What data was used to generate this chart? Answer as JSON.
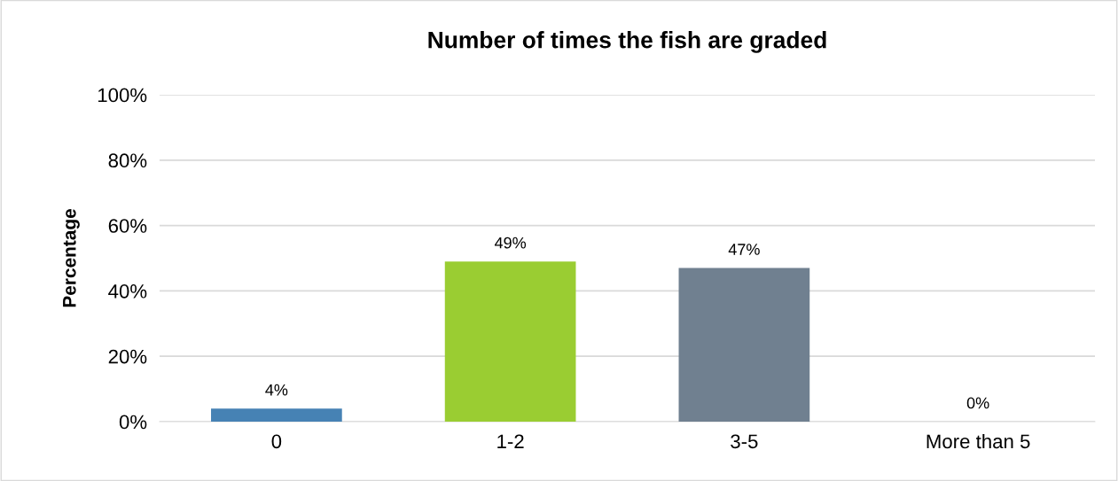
{
  "chart_data": {
    "type": "bar",
    "title": "Number of times the fish are graded",
    "ylabel": "Percentage",
    "categories": [
      "0",
      "1-2",
      "3-5",
      "More than 5"
    ],
    "values": [
      4,
      49,
      47,
      0
    ],
    "colors": [
      "#4682b4",
      "#9acd32",
      "#708090",
      "#708090"
    ],
    "value_labels": [
      "4%",
      "49%",
      "47%",
      "0%"
    ],
    "ylim": [
      0,
      100
    ],
    "yticks": [
      {
        "value": 0,
        "label": "0%"
      },
      {
        "value": 20,
        "label": "20%"
      },
      {
        "value": 40,
        "label": "40%"
      },
      {
        "value": 60,
        "label": "60%"
      },
      {
        "value": 80,
        "label": "80%"
      },
      {
        "value": 100,
        "label": "100%"
      }
    ],
    "grid": "y",
    "legend": false
  }
}
